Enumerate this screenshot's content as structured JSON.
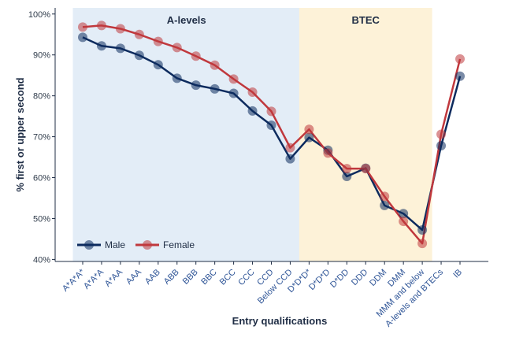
{
  "chart_data": {
    "type": "line",
    "categories": [
      "A*A*A*",
      "A*A*A",
      "A*AA",
      "AAA",
      "AAB",
      "ABB",
      "BBB",
      "BBC",
      "BCC",
      "CCC",
      "CCD",
      "Below CCD",
      "D*D*D*",
      "D*D*D",
      "D*DD",
      "DDD",
      "DDM",
      "DMM",
      "MMM and below",
      "A-levels and BTECs",
      "IB"
    ],
    "series": [
      {
        "name": "Male",
        "color": "#0d2b5e",
        "values": [
          94.3,
          92.2,
          91.6,
          89.9,
          87.6,
          84.3,
          82.6,
          81.7,
          80.6,
          76.3,
          72.8,
          64.6,
          69.8,
          66.7,
          60.3,
          62.3,
          53.2,
          51.2,
          47.2,
          67.8,
          84.8
        ]
      },
      {
        "name": "Female",
        "color": "#c0383d",
        "values": [
          96.8,
          97.2,
          96.4,
          95.0,
          93.3,
          91.8,
          89.7,
          87.5,
          84.1,
          80.9,
          76.2,
          67.3,
          71.8,
          66.0,
          62.2,
          62.2,
          55.4,
          49.3,
          43.9,
          70.6,
          89.0
        ]
      }
    ],
    "regions": [
      {
        "label": "A-levels",
        "start": "A*A*A*",
        "end": "Below CCD",
        "color": "#e3edf7"
      },
      {
        "label": "BTEC",
        "start": "D*D*D*",
        "end": "MMM and below",
        "color": "#fdf2d8"
      }
    ],
    "title": "",
    "xlabel": "Entry qualifications",
    "ylabel": "% first or upper second",
    "ylim": [
      39.5,
      101.5
    ],
    "yticks": [
      40,
      50,
      60,
      70,
      80,
      90,
      100
    ],
    "ytick_labels": [
      "40%",
      "50%",
      "60%",
      "70%",
      "80%",
      "90%",
      "100%"
    ],
    "grid": false,
    "legend": {
      "position": "bottom-left"
    }
  }
}
